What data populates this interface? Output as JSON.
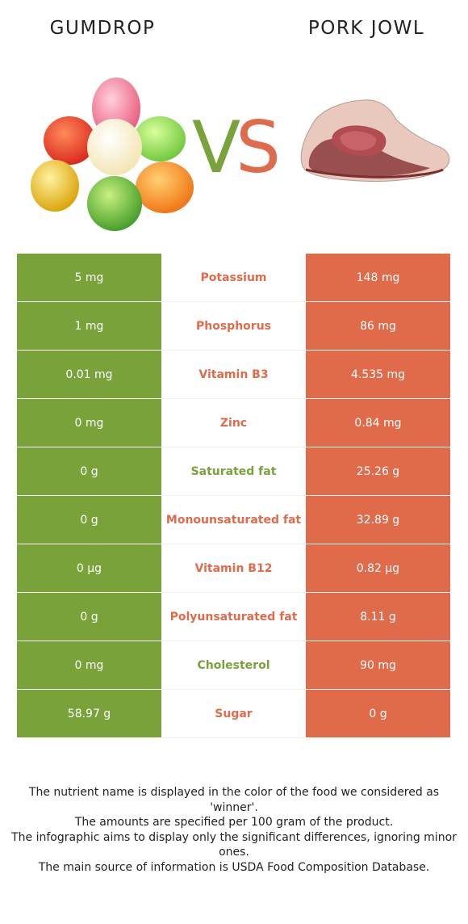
{
  "foods": {
    "left": {
      "name": "GUMDROP",
      "color": "#79a33a"
    },
    "right": {
      "name": "PORK JOWL",
      "color": "#e06b4b"
    }
  },
  "vs": {
    "v": "V",
    "s": "S"
  },
  "rows": [
    {
      "left": "5 mg",
      "nutrient": "Potassium",
      "right": "148 mg",
      "winner": "right"
    },
    {
      "left": "1 mg",
      "nutrient": "Phosphorus",
      "right": "86 mg",
      "winner": "right"
    },
    {
      "left": "0.01 mg",
      "nutrient": "Vitamin B3",
      "right": "4.535 mg",
      "winner": "right"
    },
    {
      "left": "0 mg",
      "nutrient": "Zinc",
      "right": "0.84 mg",
      "winner": "right"
    },
    {
      "left": "0 g",
      "nutrient": "Saturated fat",
      "right": "25.26 g",
      "winner": "left"
    },
    {
      "left": "0 g",
      "nutrient": "Monounsaturated fat",
      "right": "32.89 g",
      "winner": "right"
    },
    {
      "left": "0 µg",
      "nutrient": "Vitamin B12",
      "right": "0.82 µg",
      "winner": "right"
    },
    {
      "left": "0 g",
      "nutrient": "Polyunsaturated fat",
      "right": "8.11 g",
      "winner": "right"
    },
    {
      "left": "0 mg",
      "nutrient": "Cholesterol",
      "right": "90 mg",
      "winner": "left"
    },
    {
      "left": "58.97 g",
      "nutrient": "Sugar",
      "right": "0 g",
      "winner": "right"
    }
  ],
  "footer": {
    "line1": "The nutrient name is displayed in the color of the food we considered as 'winner'.",
    "line2": "The amounts are specified per 100 gram of the product.",
    "line3": "The infographic aims to display only the significant differences, ignoring minor ones.",
    "line4": "The main source of information is USDA Food Composition Database."
  }
}
